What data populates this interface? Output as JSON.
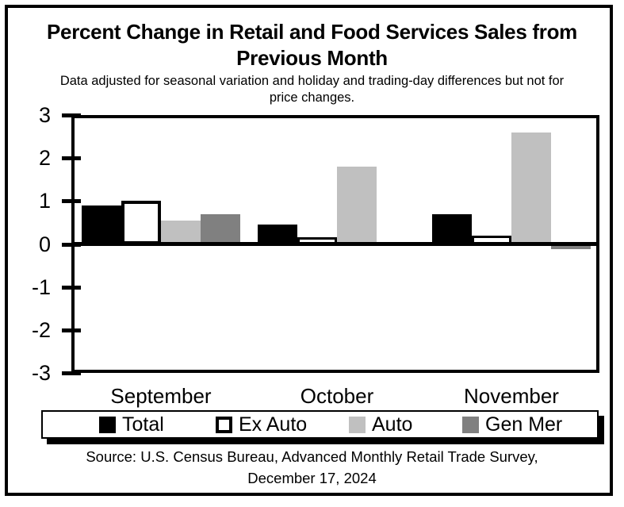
{
  "header": {
    "title_lines": [
      "Percent Change in Retail and Food Services Sales from",
      "Previous Month"
    ],
    "subtitle_lines": [
      "Data adjusted for seasonal variation and holiday and trading-day differences but not for",
      "price changes."
    ]
  },
  "footer": {
    "source_lines": [
      "Source: U.S. Census Bureau, Advanced Monthly Retail Trade Survey,",
      "December 17, 2024"
    ]
  },
  "chart_data": {
    "type": "bar",
    "title": "Percent Change in Retail and Food Services Sales from Previous Month",
    "subtitle": "Data adjusted for seasonal variation and holiday and trading-day differences but not for price changes.",
    "categories": [
      "September",
      "October",
      "November"
    ],
    "series": [
      {
        "name": "Total",
        "color": "#000000",
        "values": [
          0.9,
          0.45,
          0.7
        ]
      },
      {
        "name": "Ex Auto",
        "color": "#ffffff",
        "swatch_border": "#000000",
        "values": [
          1.0,
          0.15,
          0.2
        ]
      },
      {
        "name": "Auto",
        "color": "#c0c0c0",
        "values": [
          0.55,
          1.8,
          2.6
        ]
      },
      {
        "name": "Gen Mer",
        "color": "#808080",
        "values": [
          0.7,
          0.0,
          -0.1
        ]
      }
    ],
    "ylim": [
      -3,
      3
    ],
    "yticks": [
      3,
      2,
      1,
      0,
      -1,
      -2,
      -3
    ],
    "grid": false,
    "legend_position": "bottom",
    "axis_color": "#000000",
    "background_color": "#ffffff"
  }
}
